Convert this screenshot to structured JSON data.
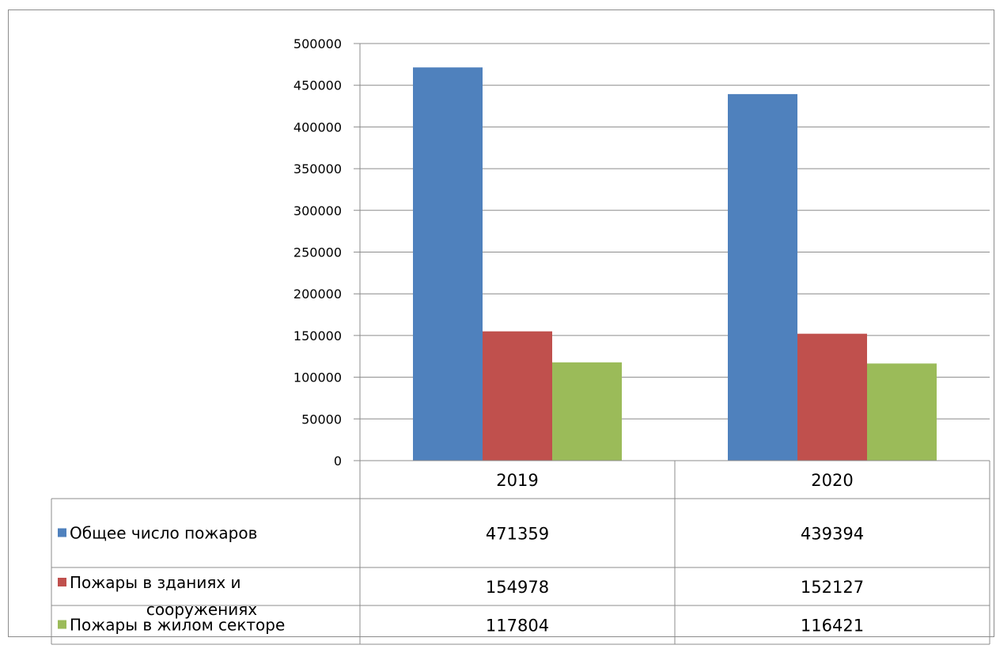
{
  "chart_data": {
    "type": "bar",
    "categories": [
      "2019",
      "2020"
    ],
    "series": [
      {
        "name": "Общее число пожаров",
        "label_lines": [
          "Общее число пожаров"
        ],
        "values": [
          471359,
          439394
        ],
        "color": "#4f81bd"
      },
      {
        "name": "Пожары в зданиях и сооружениях",
        "label_lines": [
          "Пожары в зданиях и",
          "сооружениях"
        ],
        "values": [
          154978,
          152127
        ],
        "color": "#c0504d"
      },
      {
        "name": "Пожары в жилом секторе",
        "label_lines": [
          "Пожары в жилом секторе"
        ],
        "values": [
          117804,
          116421
        ],
        "color": "#9bbb59"
      }
    ],
    "ylim": [
      0,
      500000
    ],
    "yticks": [
      0,
      50000,
      100000,
      150000,
      200000,
      250000,
      300000,
      350000,
      400000,
      450000,
      500000
    ],
    "grid": true,
    "legend": "data-table",
    "title": "",
    "xlabel": "",
    "ylabel": ""
  }
}
